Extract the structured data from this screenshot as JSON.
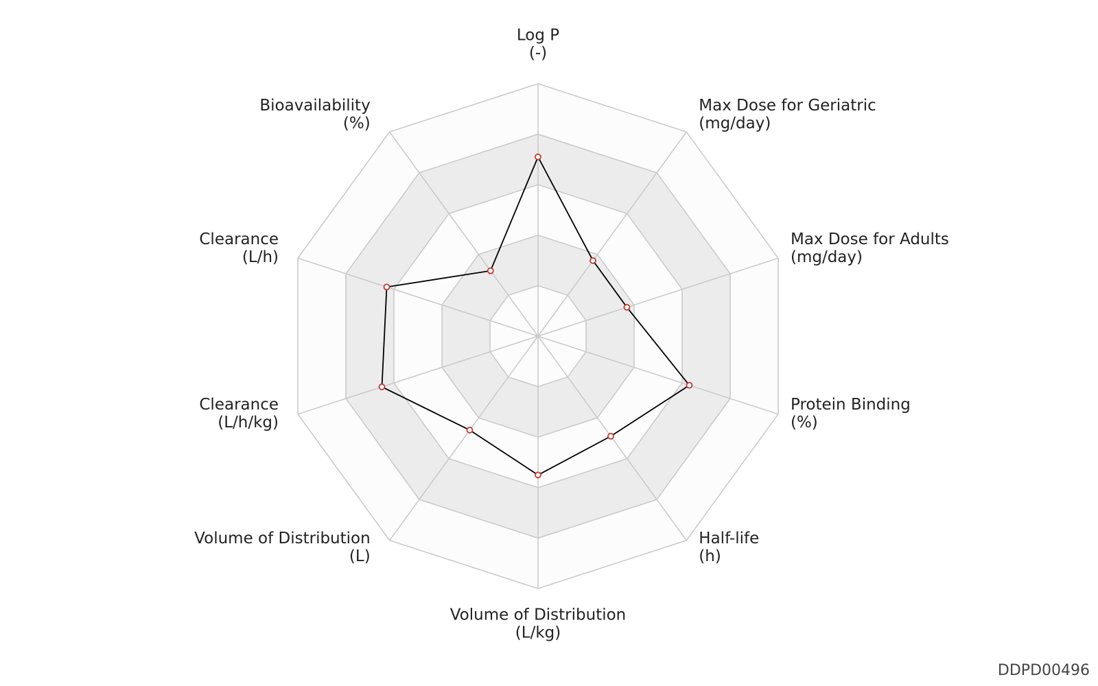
{
  "chart_data": {
    "type": "radar",
    "categories": [
      "Log P",
      "Max Dose for Geriatric",
      "Max Dose for Adults",
      "Protein Binding",
      "Half-life",
      "Volume of Distribution",
      "Volume of Distribution",
      "Clearance",
      "Clearance",
      "Bioavailability"
    ],
    "units": [
      "(-)",
      "(mg/day)",
      "(mg/day)",
      "(%)",
      "(h)",
      "(L/kg)",
      "(L)",
      "(L/h/kg)",
      "(L/h)",
      "(%)"
    ],
    "series": [
      {
        "color": "#000000",
        "marker_color": "#c0392b",
        "values": [
          0.71,
          0.37,
          0.37,
          0.63,
          0.49,
          0.55,
          0.46,
          0.65,
          0.63,
          0.32
        ]
      }
    ],
    "ylim": [
      0,
      1
    ],
    "yticks": [
      0,
      0.2,
      0.4,
      0.6,
      0.8,
      1
    ],
    "band_colors": [
      "#fcfcfc",
      "#ececec"
    ],
    "grid_color": "#c8c8c8",
    "footer": "DDPD00496"
  }
}
